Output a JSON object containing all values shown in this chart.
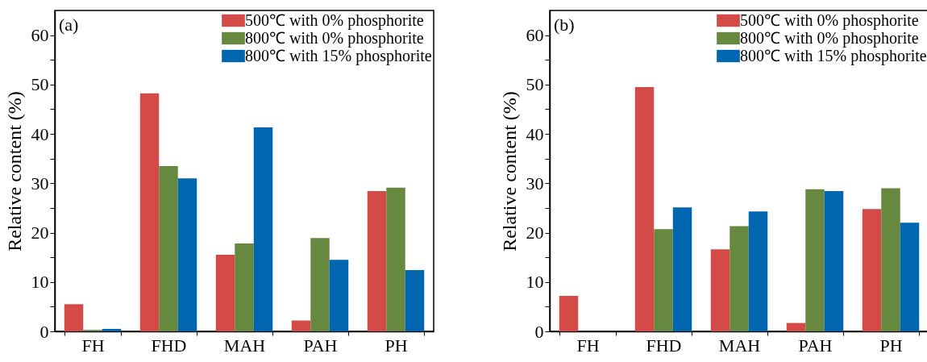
{
  "chart_data": [
    {
      "type": "bar",
      "annotations": [
        "(a)"
      ],
      "ylabel": "Relative content (%)",
      "categories": [
        "FH",
        "FHD",
        "MAH",
        "PAH",
        "PH"
      ],
      "ylim": [
        0,
        65
      ],
      "yticks": [
        0,
        {
          "value": 5,
          "label": null
        },
        10,
        {
          "value": 15,
          "label": null
        },
        20,
        {
          "value": 25,
          "label": null
        },
        30,
        {
          "value": 35,
          "label": null
        },
        40,
        {
          "value": 45,
          "label": null
        },
        50,
        {
          "value": 55,
          "label": null
        },
        60
      ],
      "grid": false,
      "legend": "top right",
      "series": [
        {
          "name": "500℃ with 0% phosphorite",
          "color": "#d44a46",
          "values": [
            5.5,
            48.2,
            15.5,
            2.2,
            28.4
          ]
        },
        {
          "name": "800℃ with 0% phosphorite",
          "color": "#67893f",
          "values": [
            0.3,
            33.5,
            17.8,
            18.9,
            29.1
          ]
        },
        {
          "name": "800℃ with 15% phosphorite",
          "color": "#0066b0",
          "values": [
            0.5,
            31.0,
            41.3,
            14.5,
            12.4
          ]
        }
      ]
    },
    {
      "type": "bar",
      "annotations": [
        "(b)"
      ],
      "ylabel": "Relative content (%)",
      "categories": [
        "FH",
        "FHD",
        "MAH",
        "PAH",
        "PH"
      ],
      "ylim": [
        0,
        65
      ],
      "yticks": [
        0,
        {
          "value": 5,
          "label": null
        },
        10,
        {
          "value": 15,
          "label": null
        },
        20,
        {
          "value": 25,
          "label": null
        },
        30,
        {
          "value": 35,
          "label": null
        },
        40,
        {
          "value": 45,
          "label": null
        },
        50,
        {
          "value": 55,
          "label": null
        },
        60
      ],
      "grid": false,
      "legend": "top right",
      "series": [
        {
          "name": "500℃ with 0% phosphorite",
          "color": "#d44a46",
          "values": [
            7.2,
            49.5,
            16.6,
            1.7,
            24.8
          ]
        },
        {
          "name": "800℃ with 0% phosphorite",
          "color": "#67893f",
          "values": [
            0,
            20.7,
            21.3,
            28.8,
            29.0
          ]
        },
        {
          "name": "800℃ with 15% phosphorite",
          "color": "#0066b0",
          "values": [
            0,
            25.1,
            24.3,
            28.4,
            22.0
          ]
        }
      ]
    }
  ]
}
